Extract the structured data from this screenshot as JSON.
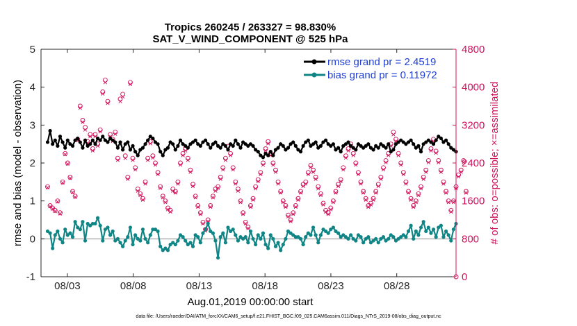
{
  "chart_data": {
    "type": "line",
    "title_line1": "Tropics 260245 / 263327 = 98.830%",
    "title_line2": "SAT_V_WIND_COMPONENT @ 525 hPa",
    "xlabel": "Aug.01,2019 00:00:00 start",
    "ylabel_left": "rmse and bias (model - observation)",
    "ylabel_right": "# of obs: o=possible; ×=assimilated",
    "footer": "data file: /Users/raeder/DAI/ATM_forcXX/CAM6_setup/f.e21.FHIST_BGC.f09_025.CAM6assim.011/Diags_NTrS_2019-08/obs_diag_output.nc",
    "xlim": [
      1,
      32.5
    ],
    "ylim_left": [
      -1,
      5
    ],
    "ylim_right": [
      0,
      4800
    ],
    "x_ticks": [
      3,
      8,
      13,
      18,
      23,
      28
    ],
    "x_tick_labels": [
      "08/03",
      "08/08",
      "08/13",
      "08/18",
      "08/23",
      "08/28"
    ],
    "y_left_ticks": [
      -1,
      0,
      1,
      2,
      3,
      4,
      5
    ],
    "y_left_tick_labels": [
      "-1",
      "0",
      "1",
      "2",
      "3",
      "4",
      "5"
    ],
    "y_right_ticks": [
      0,
      800,
      1600,
      2400,
      3200,
      4000,
      4800
    ],
    "y_right_tick_labels": [
      "0",
      "800",
      "1600",
      "2400",
      "3200",
      "4000",
      "4800"
    ],
    "colors": {
      "rmse": "#000000",
      "bias": "#0f8585",
      "obs": "#d0105a",
      "zero": "#b0b0b0",
      "legend_text": "#1f3fd6"
    },
    "legend": [
      {
        "name": "rmse grand pr = 2.4519",
        "series": "rmse"
      },
      {
        "name": "bias grand pr = 0.11972",
        "series": "bias"
      }
    ],
    "series": [
      {
        "name": "rmse",
        "values": [
          2.55,
          2.85,
          2.5,
          2.6,
          2.45,
          2.7,
          2.55,
          2.4,
          2.6,
          2.5,
          2.45,
          2.6,
          2.65,
          2.55,
          2.4,
          2.6,
          2.45,
          2.5,
          2.6,
          2.5,
          2.65,
          2.6,
          2.7,
          2.6,
          2.55,
          2.65,
          2.6,
          2.55,
          2.4,
          2.55,
          2.35,
          2.5,
          2.55,
          2.35,
          2.45,
          2.3,
          2.2,
          2.35,
          2.4,
          2.5,
          2.6,
          2.7,
          2.65,
          2.55,
          2.5,
          2.3,
          2.2,
          2.35,
          2.4,
          2.55,
          2.5,
          2.35,
          2.45,
          2.6,
          2.5,
          2.45,
          2.4,
          2.5,
          2.55,
          2.6,
          2.5,
          2.45,
          2.55,
          2.6,
          2.5,
          2.4,
          2.5,
          2.55,
          2.45,
          2.4,
          2.5,
          2.45,
          2.35,
          2.5,
          2.45,
          2.6,
          2.5,
          2.4,
          2.55,
          2.5,
          2.45,
          2.5,
          2.45,
          2.35,
          2.3,
          2.2,
          2.15,
          2.25,
          2.2,
          2.3,
          2.2,
          2.35,
          2.4,
          2.5,
          2.45,
          2.35,
          2.4,
          2.5,
          2.55,
          2.45,
          2.35,
          2.3,
          2.45,
          2.55,
          2.6,
          2.45,
          2.5,
          2.55,
          2.4,
          2.45,
          2.55,
          2.6,
          2.5,
          2.45,
          2.5,
          2.35,
          2.4,
          2.3,
          2.45,
          2.5,
          2.55,
          2.45,
          2.4,
          2.35,
          2.5,
          2.45,
          2.4,
          2.45,
          2.5,
          2.4,
          2.35,
          2.45,
          2.4,
          2.5,
          2.45,
          2.4,
          2.5,
          2.3,
          2.35,
          2.5,
          2.55,
          2.6,
          2.55,
          2.5,
          2.55,
          2.6,
          2.5,
          2.4,
          2.45,
          2.3,
          2.5,
          2.55,
          2.6,
          2.55,
          2.5,
          2.6,
          2.7,
          2.65,
          2.55,
          2.6,
          2.5,
          2.4,
          2.35,
          2.3
        ]
      },
      {
        "name": "bias",
        "values": [
          0.2,
          0.15,
          -0.25,
          0.1,
          0.2,
          0.0,
          -0.1,
          0.25,
          0.1,
          0.15,
          0.05,
          0.45,
          0.3,
          0.25,
          0.45,
          -0.05,
          0.4,
          0.35,
          0.4,
          0.4,
          0.55,
          0.35,
          -0.05,
          0.25,
          0.3,
          0.1,
          0.2,
          -0.05,
          0.0,
          -0.1,
          -0.2,
          -0.05,
          0.05,
          0.3,
          -0.15,
          0.1,
          0.0,
          -0.05,
          0.25,
          0.0,
          -0.1,
          0.1,
          0.25,
          0.25,
          0.2,
          -0.2,
          -0.3,
          -0.25,
          -0.3,
          -0.15,
          -0.1,
          -0.15,
          -0.05,
          0.1,
          0.05,
          -0.05,
          -0.15,
          -0.1,
          -0.2,
          0.1,
          0.05,
          -0.1,
          0.15,
          0.25,
          0.4,
          0.2,
          0.15,
          -0.05,
          -0.5,
          0.05,
          0.15,
          -0.1,
          0.3,
          0.2,
          0.25,
          0.1,
          -0.05,
          0.05,
          0.0,
          0.05,
          -0.1,
          0.2,
          0.0,
          -0.15,
          0.1,
          0.0,
          0.15,
          -0.15,
          -0.25,
          0.1,
          0.0,
          -0.2,
          -0.1,
          -0.3,
          -0.15,
          0.0,
          0.2,
          0.15,
          0.1,
          0.05,
          0.05,
          0.0,
          -0.15,
          0.05,
          0.15,
          0.1,
          0.3,
          0.1,
          -0.1,
          0.1,
          0.25,
          0.2,
          0.15,
          0.25,
          0.3,
          0.2,
          0.15,
          0.05,
          0.1,
          0.05,
          0.0,
          0.1,
          0.0,
          -0.05,
          0.1,
          0.05,
          -0.1,
          0.0,
          0.05,
          -0.1,
          -0.05,
          0.0,
          -0.1,
          0.0,
          0.05,
          -0.05,
          0.0,
          0.1,
          0.05,
          -0.05,
          0.0,
          0.05,
          0.1,
          0.05,
          0.2,
          0.35,
          0.0,
          0.2,
          0.1,
          0.3,
          0.45,
          0.2,
          0.3,
          0.15,
          0.25,
          0.05,
          0.3,
          0.35,
          0.05,
          0.2,
          0.1,
          -0.05,
          0.25,
          0.4
        ]
      },
      {
        "name": "obs_possible",
        "values": [
          1900,
          1500,
          1450,
          1400,
          1600,
          1350,
          2000,
          2600,
          2400,
          2100,
          1800,
          1700,
          2900,
          3600,
          3300,
          3150,
          2850,
          3000,
          2700,
          3000,
          2800,
          3100,
          3900,
          4150,
          3700,
          3000,
          2900,
          3050,
          2500,
          3750,
          3850,
          2550,
          2100,
          4100,
          2500,
          2300,
          1850,
          1750,
          1650,
          2000,
          2500,
          2850,
          2550,
          2400,
          2200,
          1900,
          1700,
          1600,
          1450,
          1400,
          1850,
          1800,
          2000,
          2400,
          2600,
          2700,
          2500,
          2250,
          1950,
          1700,
          1500,
          1350,
          1150,
          1000,
          1200,
          1500,
          1700,
          1850,
          1900,
          2100,
          2300,
          2500,
          2750,
          2600,
          2300,
          2000,
          1850,
          1600,
          1350,
          1150,
          1050,
          1500,
          1650,
          1900,
          2050,
          2200,
          2400,
          2700,
          2850,
          2600,
          2400,
          2250,
          2000,
          1800,
          1600,
          1500,
          1300,
          1200,
          1350,
          1500,
          1650,
          1800,
          1950,
          2000,
          2200,
          2350,
          2250,
          2100,
          1900,
          1750,
          1550,
          1400,
          1350,
          1450,
          1600,
          1800,
          1950,
          2050,
          2300,
          2550,
          2700,
          2800,
          2600,
          2400,
          2200,
          2000,
          1800,
          1650,
          1500,
          1550,
          1650,
          1800,
          1950,
          2100,
          2300,
          2450,
          2600,
          2800,
          3050,
          2900,
          2600,
          2400,
          2200,
          2000,
          1800,
          1650,
          1500,
          1600,
          1750,
          1900,
          2100,
          2250,
          2450,
          2700,
          2900,
          2650,
          2450,
          2250,
          2000,
          1800,
          1600,
          1400,
          1600,
          1900,
          2150,
          2250,
          2450,
          1800
        ]
      },
      {
        "name": "obs_assimilated",
        "values": [
          1880,
          1480,
          1430,
          1380,
          1580,
          1330,
          1980,
          2580,
          2380,
          2080,
          1780,
          1680,
          2880,
          3560,
          3260,
          3100,
          2820,
          2960,
          2660,
          2960,
          2760,
          3060,
          3860,
          4100,
          3660,
          2960,
          2860,
          3010,
          2460,
          3700,
          3800,
          2500,
          2060,
          4060,
          2460,
          2260,
          1810,
          1720,
          1620,
          1960,
          2460,
          2810,
          2510,
          2360,
          2160,
          1870,
          1670,
          1570,
          1420,
          1370,
          1810,
          1770,
          1960,
          2360,
          2560,
          2660,
          2460,
          2210,
          1910,
          1670,
          1470,
          1320,
          1120,
          970,
          1170,
          1470,
          1670,
          1810,
          1870,
          2060,
          2260,
          2460,
          2710,
          2560,
          2260,
          1960,
          1810,
          1570,
          1320,
          1120,
          1020,
          1470,
          1620,
          1860,
          2010,
          2160,
          2360,
          2660,
          2810,
          2560,
          2360,
          2210,
          1960,
          1770,
          1570,
          1470,
          1270,
          1170,
          1320,
          1470,
          1620,
          1770,
          1910,
          1960,
          2160,
          2310,
          2210,
          2060,
          1860,
          1720,
          1520,
          1370,
          1320,
          1420,
          1570,
          1770,
          1910,
          2010,
          2260,
          2510,
          2660,
          2760,
          2560,
          2360,
          2160,
          1960,
          1770,
          1620,
          1470,
          1520,
          1620,
          1770,
          1910,
          2060,
          2260,
          2410,
          2560,
          2760,
          3000,
          2860,
          2560,
          2360,
          2160,
          1960,
          1770,
          1620,
          1470,
          1570,
          1720,
          1860,
          2060,
          2210,
          2410,
          2660,
          2860,
          2610,
          2410,
          2210,
          1960,
          1770,
          1570,
          1370,
          1570,
          1860,
          2110,
          2210,
          2410,
          1770
        ]
      }
    ]
  }
}
